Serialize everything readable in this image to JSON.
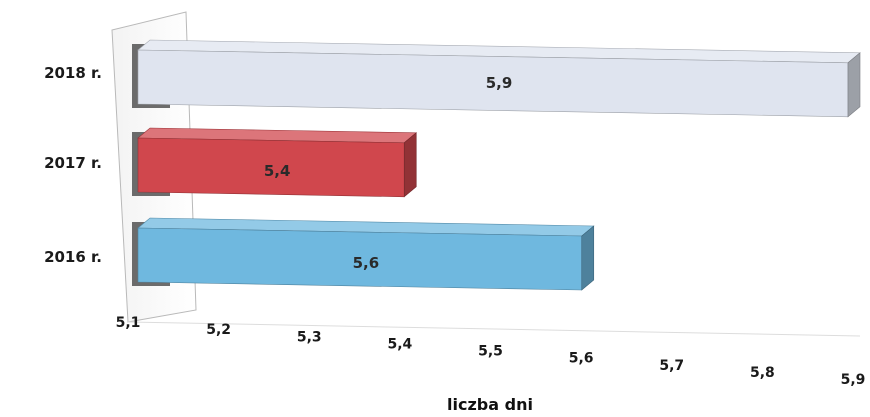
{
  "chart_data": {
    "type": "bar",
    "orientation": "horizontal",
    "style": "3d",
    "categories": [
      "2018 r.",
      "2017 r.",
      "2016 r."
    ],
    "values": [
      5.9,
      5.4,
      5.6
    ],
    "value_labels": [
      "5,9",
      "5,4",
      "5,6"
    ],
    "colors": [
      "#dfe4ef",
      "#d0474d",
      "#6fb8df"
    ],
    "xlabel": "liczba dni",
    "ylabel": "",
    "title": "",
    "xlim": [
      5.1,
      5.9
    ],
    "x_ticks": [
      "5,1",
      "5,2",
      "5,3",
      "5,4",
      "5,5",
      "5,6",
      "5,7",
      "5,8",
      "5,9"
    ],
    "grid": false,
    "legend": "none"
  }
}
